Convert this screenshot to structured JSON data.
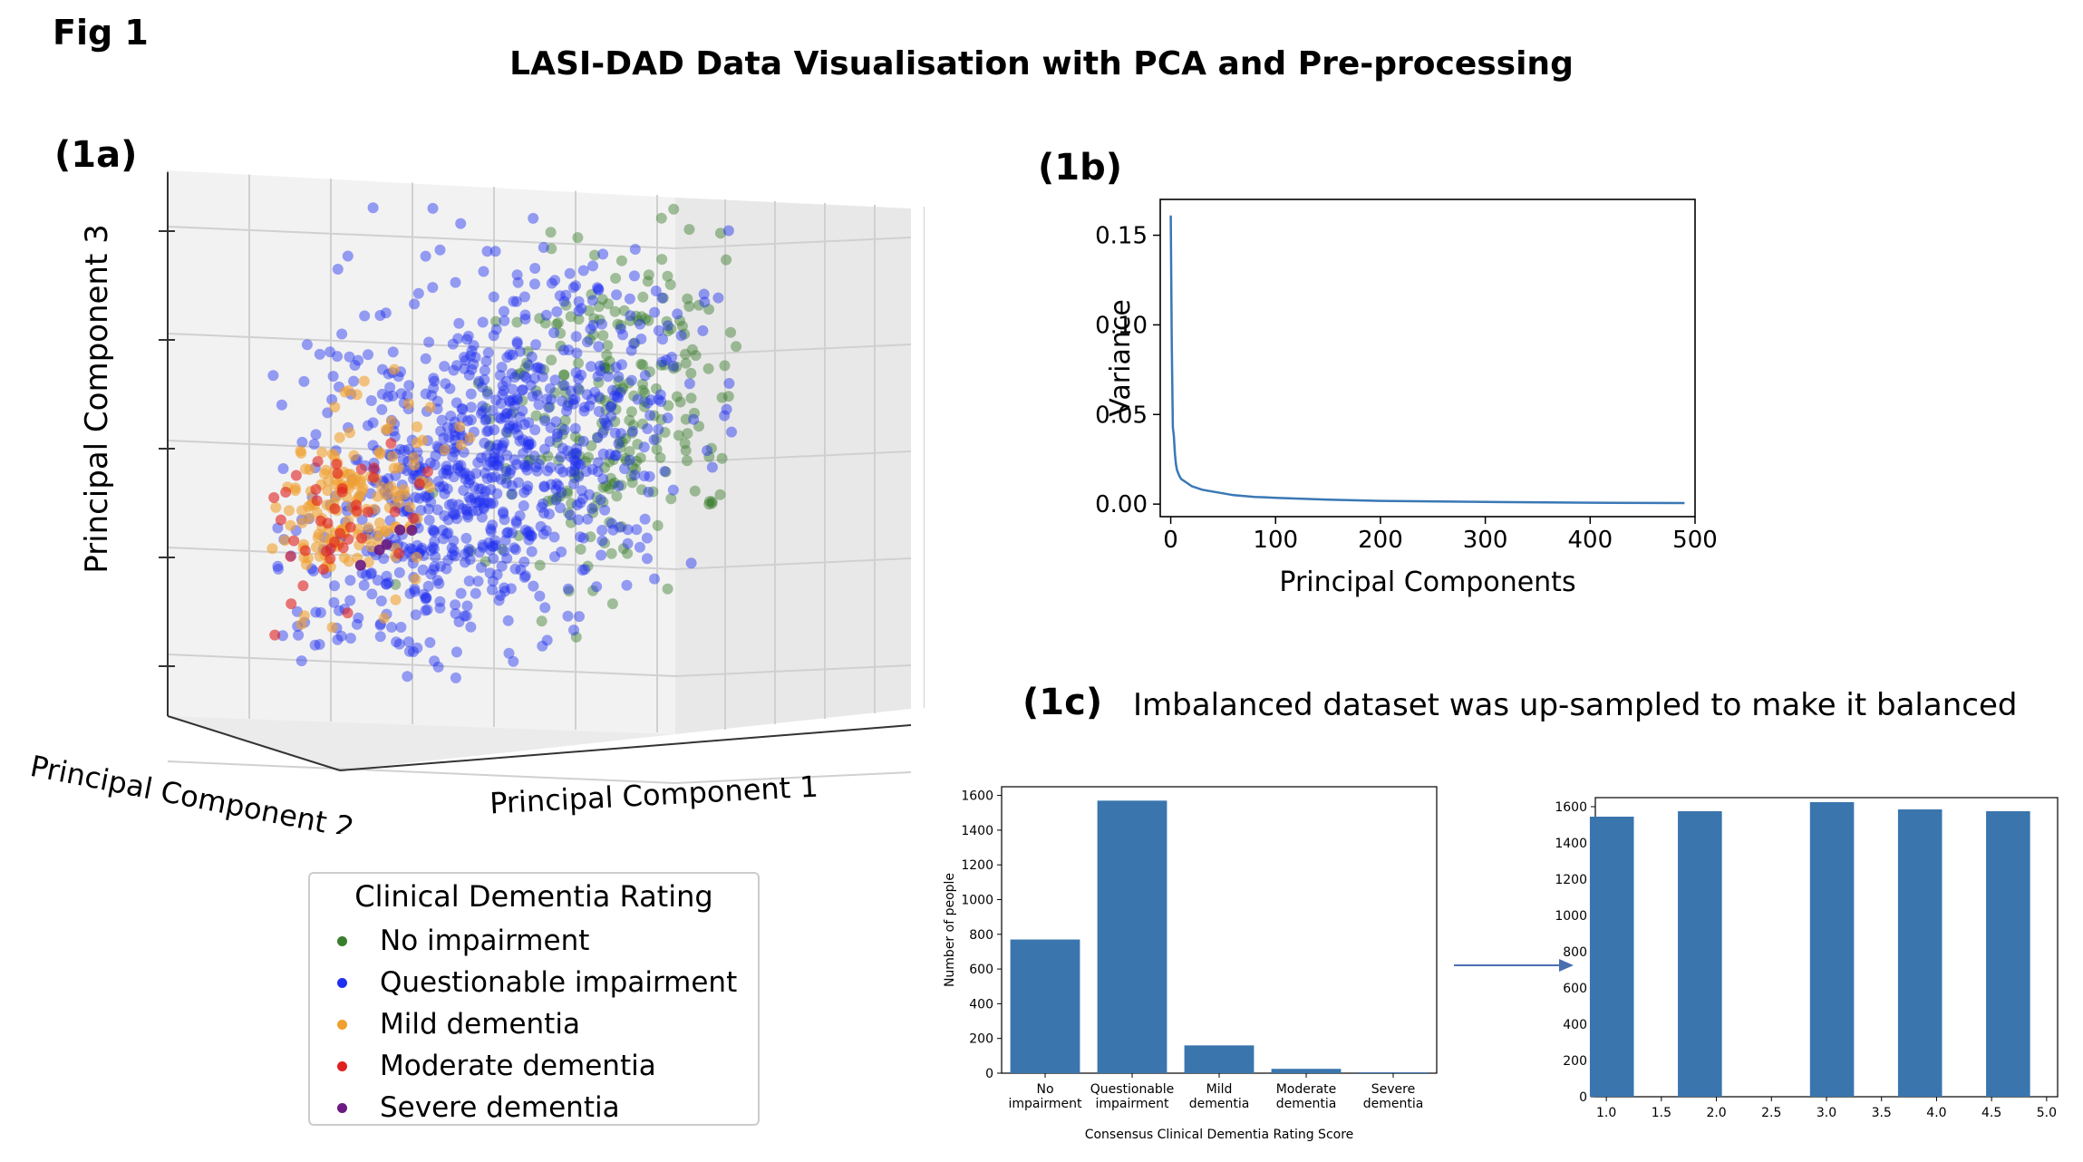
{
  "header": {
    "fig_label": "Fig 1",
    "title": "LASI-DAD Data Visualisation with PCA and Pre-processing"
  },
  "panel_a": {
    "label": "(1a)",
    "legend": {
      "title": "Clinical Dementia Rating",
      "items": [
        {
          "label": "No impairment",
          "color": "#3a7d2c"
        },
        {
          "label": "Questionable impairment",
          "color": "#1f2ff0"
        },
        {
          "label": "Mild dementia",
          "color": "#f0a030"
        },
        {
          "label": "Moderate dementia",
          "color": "#e02020"
        },
        {
          "label": "Severe dementia",
          "color": "#6a1a80"
        }
      ]
    }
  },
  "panel_b": {
    "label": "(1b)"
  },
  "panel_c": {
    "label": "(1c)",
    "subtitle": "Imbalanced dataset was up-sampled to make it balanced"
  },
  "chart_data": [
    {
      "id": "1a",
      "type": "scatter",
      "projection": "3d",
      "xlabel": "Principal Component 1",
      "ylabel": "Principal Component 2",
      "zlabel": "Principal Component 3",
      "series": [
        {
          "name": "No impairment",
          "color": "#3a7d2c"
        },
        {
          "name": "Questionable impairment",
          "color": "#1f2ff0"
        },
        {
          "name": "Mild dementia",
          "color": "#f0a030"
        },
        {
          "name": "Moderate dementia",
          "color": "#e02020"
        },
        {
          "name": "Severe dementia",
          "color": "#6a1a80"
        }
      ]
    },
    {
      "id": "1b",
      "type": "line",
      "xlabel": "Principal Components",
      "ylabel": "Variance",
      "xlim": [
        -10,
        500
      ],
      "ylim": [
        -0.007,
        0.17
      ],
      "xticks": [
        0,
        100,
        200,
        300,
        400,
        500
      ],
      "yticks": [
        0.0,
        0.05,
        0.1,
        0.15
      ],
      "ytick_labels": [
        "0.00",
        "0.05",
        "0.10",
        "0.15"
      ],
      "color": "#3a78b5",
      "x": [
        0,
        1,
        2,
        3,
        4,
        5,
        6,
        8,
        10,
        15,
        20,
        30,
        40,
        60,
        80,
        100,
        150,
        200,
        300,
        400,
        490
      ],
      "y": [
        0.161,
        0.09,
        0.043,
        0.038,
        0.028,
        0.022,
        0.019,
        0.016,
        0.014,
        0.012,
        0.01,
        0.008,
        0.007,
        0.005,
        0.004,
        0.0035,
        0.0025,
        0.0018,
        0.0012,
        0.0008,
        0.0006
      ]
    },
    {
      "id": "1c-left",
      "type": "bar",
      "xlabel": "Consensus Clinical Dementia Rating Score",
      "ylabel": "Number of people",
      "ylim": [
        0,
        1650
      ],
      "yticks": [
        0,
        200,
        400,
        600,
        800,
        1000,
        1200,
        1400,
        1600
      ],
      "categories": [
        [
          "No",
          "impairment"
        ],
        [
          "Questionable",
          "impairment"
        ],
        [
          "Mild",
          "dementia"
        ],
        [
          "Moderate",
          "dementia"
        ],
        [
          "Severe",
          "dementia"
        ]
      ],
      "values": [
        770,
        1570,
        160,
        25,
        5
      ],
      "color": "#3a75ae"
    },
    {
      "id": "1c-right",
      "type": "bar",
      "xlim": [
        0.9,
        5.1
      ],
      "ylim": [
        0,
        1650
      ],
      "xticks": [
        1.0,
        1.5,
        2.0,
        2.5,
        3.0,
        3.5,
        4.0,
        4.5,
        5.0
      ],
      "xtick_labels": [
        "1.0",
        "1.5",
        "2.0",
        "2.5",
        "3.0",
        "3.5",
        "4.0",
        "4.5",
        "5.0"
      ],
      "yticks": [
        0,
        200,
        400,
        600,
        800,
        1000,
        1200,
        1400,
        1600
      ],
      "x": [
        1.05,
        1.85,
        3.05,
        3.85,
        4.65
      ],
      "bar_width": 0.4,
      "values": [
        1545,
        1575,
        1625,
        1585,
        1575
      ],
      "color": "#3a75ae"
    }
  ]
}
